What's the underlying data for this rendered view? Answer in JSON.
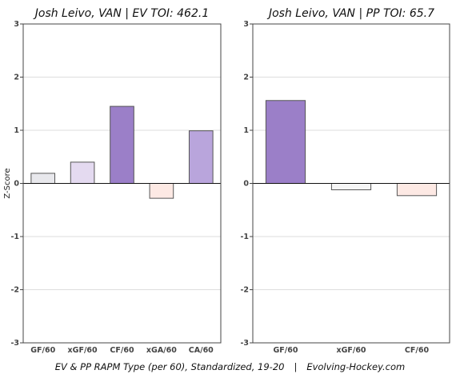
{
  "colors": {
    "grid": "#dddddd",
    "axis": "#444444",
    "zero_line": "#111111",
    "bar_edge": "#555555"
  },
  "footer": {
    "left": "EV & PP RAPM Type (per 60), Standardized, 19-20",
    "separator": "|",
    "right": "Evolving-Hockey.com"
  },
  "chart_data": [
    {
      "type": "bar",
      "title": "Josh Leivo, VAN  |  EV TOI: 462.1",
      "ylabel": "Z-Score",
      "ylim": [
        -3,
        3
      ],
      "yticks": [
        -3,
        -2,
        -1,
        0,
        1,
        2,
        3
      ],
      "grid": true,
      "categories": [
        "GF/60",
        "xGF/60",
        "CF/60",
        "xGA/60",
        "CA/60"
      ],
      "values": [
        0.19,
        0.4,
        1.45,
        -0.28,
        0.99
      ],
      "bar_colors": [
        "#e8e8ec",
        "#e4daf0",
        "#9b7fc8",
        "#fde9e4",
        "#b9a5dc"
      ]
    },
    {
      "type": "bar",
      "title": "Josh Leivo, VAN  |  PP TOI: 65.7",
      "ylabel": "",
      "ylim": [
        -3,
        3
      ],
      "yticks": [
        -3,
        -2,
        -1,
        0,
        1,
        2,
        3
      ],
      "grid": true,
      "categories": [
        "GF/60",
        "xGF/60",
        "CF/60"
      ],
      "values": [
        1.56,
        -0.12,
        -0.23
      ],
      "bar_colors": [
        "#9b7fc8",
        "#f6f6f6",
        "#fde9e4"
      ]
    }
  ]
}
